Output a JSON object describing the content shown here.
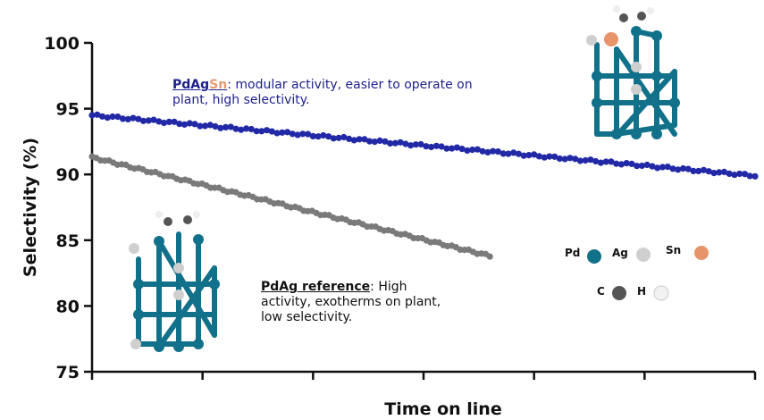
{
  "chart_data": {
    "type": "scatter",
    "title": "",
    "xlabel": "Time on line",
    "ylabel": "Selectivity  (%)",
    "ylim": [
      75,
      100
    ],
    "yticks": [
      "75",
      "80",
      "85",
      "90",
      "95",
      "100"
    ],
    "xlim": [
      0,
      6
    ],
    "grid": false,
    "series": [
      {
        "name": "PdAgSn",
        "color": "#2229a6",
        "start": [
          0.0,
          94.5
        ],
        "end": [
          6.0,
          89.9
        ],
        "points": 130
      },
      {
        "name": "PdAg",
        "color": "#7a7a7a",
        "start": [
          0.0,
          91.3
        ],
        "end": [
          3.6,
          83.8
        ],
        "points": 95
      }
    ],
    "annotations": {
      "pdagsn_name_main": "PdAg",
      "pdagsn_name_sn": "Sn",
      "pdagsn_text": ": modular activity, easier to operate on plant, high selectivity.",
      "pdag_name": "PdAg reference",
      "pdag_text": ": High activity, exotherms on plant, low selectivity."
    },
    "legend": {
      "items": [
        {
          "label": "Pd",
          "color": "#12718a"
        },
        {
          "label": "Ag",
          "color": "#c8c8c8"
        },
        {
          "label": "Sn",
          "color": "#e8946a"
        },
        {
          "label": "C",
          "color": "#555555"
        },
        {
          "label": "H",
          "color": "#f2f2f2"
        }
      ]
    }
  }
}
